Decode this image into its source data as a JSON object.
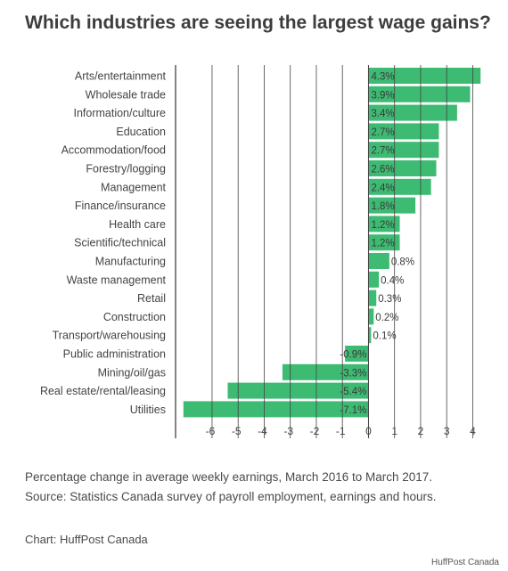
{
  "chart_data": {
    "type": "bar",
    "orientation": "horizontal",
    "title": "Which industries are seeing the largest wage gains?",
    "categories": [
      "Arts/entertainment",
      "Wholesale trade",
      "Information/culture",
      "Education",
      "Accommodation/food",
      "Forestry/logging",
      "Management",
      "Finance/insurance",
      "Health care",
      "Scientific/technical",
      "Manufacturing",
      "Waste management",
      "Retail",
      "Construction",
      "Transport/warehousing",
      "Public administration",
      "Mining/oil/gas",
      "Real estate/rental/leasing",
      "Utilities"
    ],
    "values": [
      4.3,
      3.9,
      3.4,
      2.7,
      2.7,
      2.6,
      2.4,
      1.8,
      1.2,
      1.2,
      0.8,
      0.4,
      0.3,
      0.2,
      0.1,
      -0.9,
      -3.3,
      -5.4,
      -7.1
    ],
    "data_labels": [
      "4.3%",
      "3.9%",
      "3.4%",
      "2.7%",
      "2.7%",
      "2.6%",
      "2.4%",
      "1.8%",
      "1.2%",
      "1.2%",
      "0.8%",
      "0.4%",
      "0.3%",
      "0.2%",
      "0.1%",
      "-0.9%",
      "-3.3%",
      "-5.4%",
      "-7.1%"
    ],
    "x_ticks": [
      -6,
      -5,
      -4,
      -3,
      -2,
      -1,
      0,
      1,
      2,
      3,
      4
    ],
    "xlim": [
      -7.4,
      4.6
    ],
    "bar_color": "#3dbb73",
    "grid": false,
    "legend": "none"
  },
  "notes": {
    "line1": "Percentage change in average weekly earnings, March 2016 to March 2017.",
    "line2": "Source: Statistics Canada survey of payroll employment, earnings and hours."
  },
  "credit": "Chart: HuffPost Canada",
  "watermark": "HuffPost Canada"
}
